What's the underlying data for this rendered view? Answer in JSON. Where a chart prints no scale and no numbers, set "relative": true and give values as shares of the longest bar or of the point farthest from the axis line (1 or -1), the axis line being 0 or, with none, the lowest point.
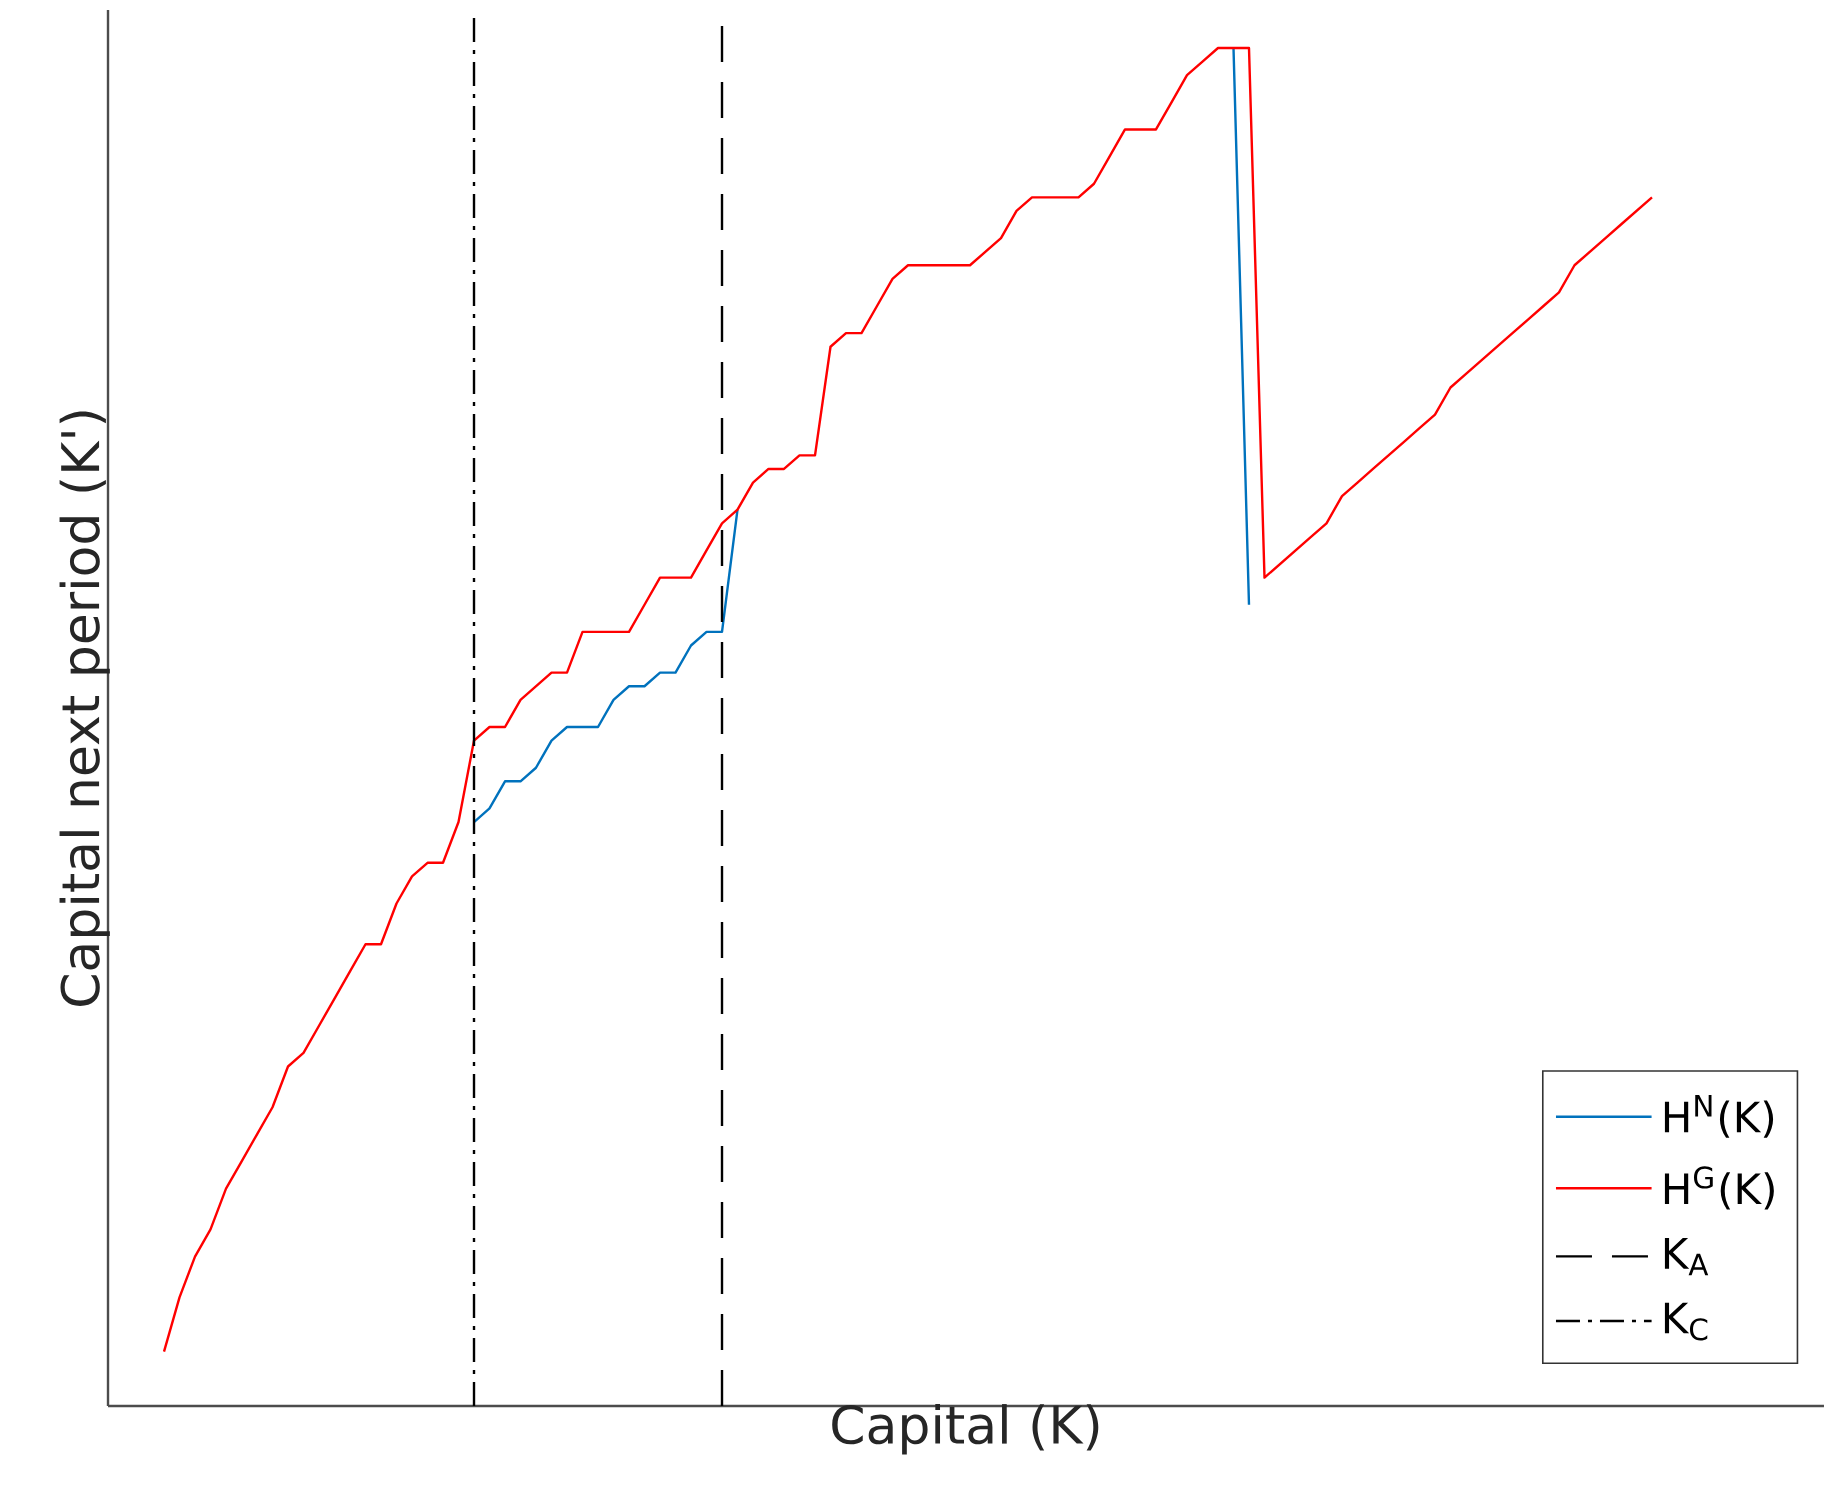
{
  "chart_data": {
    "type": "line",
    "relative": true,
    "xlabel": "Capital (K)",
    "ylabel": "Capital next period (K')",
    "categories": [
      null,
      null,
      null,
      null,
      null,
      null,
      null,
      null,
      null,
      null,
      null,
      null,
      null,
      null,
      null,
      null,
      null,
      null,
      null,
      null,
      null,
      null,
      null,
      null,
      null,
      null,
      null,
      null,
      null,
      null,
      null,
      null,
      null,
      null,
      null,
      null,
      null,
      null,
      null,
      null,
      null,
      null,
      null,
      null,
      null,
      null,
      null,
      null,
      null,
      null,
      null,
      null,
      null,
      null,
      null,
      null,
      null,
      null,
      null,
      null,
      null,
      null,
      null,
      null,
      null,
      null,
      null,
      null,
      null,
      null,
      null,
      null,
      null,
      null,
      null,
      null,
      null,
      null,
      null,
      null,
      null,
      null,
      null,
      null,
      null,
      null,
      null,
      null,
      null,
      null,
      null,
      null,
      null,
      null,
      null,
      null,
      null
    ],
    "series": [
      {
        "name": "H$^{N}$(K)",
        "color": "#0072bd",
        "values": [
          null,
          null,
          null,
          null,
          null,
          null,
          null,
          null,
          null,
          null,
          null,
          null,
          null,
          null,
          null,
          null,
          null,
          null,
          null,
          null,
          0.43,
          0.44,
          0.46,
          0.46,
          0.47,
          0.49,
          0.5,
          0.5,
          0.5,
          0.52,
          0.53,
          0.53,
          0.54,
          0.54,
          0.56,
          0.57,
          0.57,
          0.66,
          null,
          null,
          null,
          null,
          null,
          null,
          null,
          null,
          null,
          null,
          null,
          null,
          null,
          null,
          null,
          null,
          null,
          null,
          null,
          null,
          null,
          null,
          null,
          null,
          null,
          null,
          null,
          null,
          null,
          null,
          null,
          1.0,
          0.59,
          null,
          null,
          null,
          null,
          null,
          null,
          null,
          null,
          null,
          null,
          null,
          null,
          null,
          null,
          null,
          null,
          null,
          null,
          null,
          null,
          null,
          null,
          null,
          null,
          null,
          null
        ]
      },
      {
        "name": "H$^{G}$(K)",
        "color": "#ff0000",
        "values": [
          0.04,
          0.08,
          0.11,
          0.13,
          0.16,
          0.18,
          0.2,
          0.22,
          0.25,
          0.26,
          0.28,
          0.3,
          0.32,
          0.34,
          0.34,
          0.37,
          0.39,
          0.4,
          0.4,
          0.43,
          0.49,
          0.5,
          0.5,
          0.52,
          0.53,
          0.54,
          0.54,
          0.57,
          0.57,
          0.57,
          0.57,
          0.59,
          0.61,
          0.61,
          0.61,
          0.63,
          0.65,
          0.66,
          0.68,
          0.69,
          0.69,
          0.7,
          0.7,
          0.78,
          0.79,
          0.79,
          0.81,
          0.83,
          0.84,
          0.84,
          0.84,
          0.84,
          0.84,
          0.85,
          0.86,
          0.88,
          0.89,
          0.89,
          0.89,
          0.89,
          0.9,
          0.92,
          0.94,
          0.94,
          0.94,
          0.96,
          0.98,
          0.99,
          1.0,
          1.0,
          1.0,
          0.61,
          0.62,
          0.63,
          0.64,
          0.65,
          0.67,
          0.68,
          0.69,
          0.7,
          0.71,
          0.72,
          0.73,
          0.75,
          0.76,
          0.77,
          0.78,
          0.79,
          0.8,
          0.81,
          0.82,
          0.84,
          0.85,
          0.86,
          0.87,
          0.88,
          0.89
        ]
      }
    ],
    "annotations": [
      "K$_{A}$",
      "K$_{C}$"
    ],
    "legend": "bottom right",
    "marker": "none",
    "line_style": "solid"
  }
}
